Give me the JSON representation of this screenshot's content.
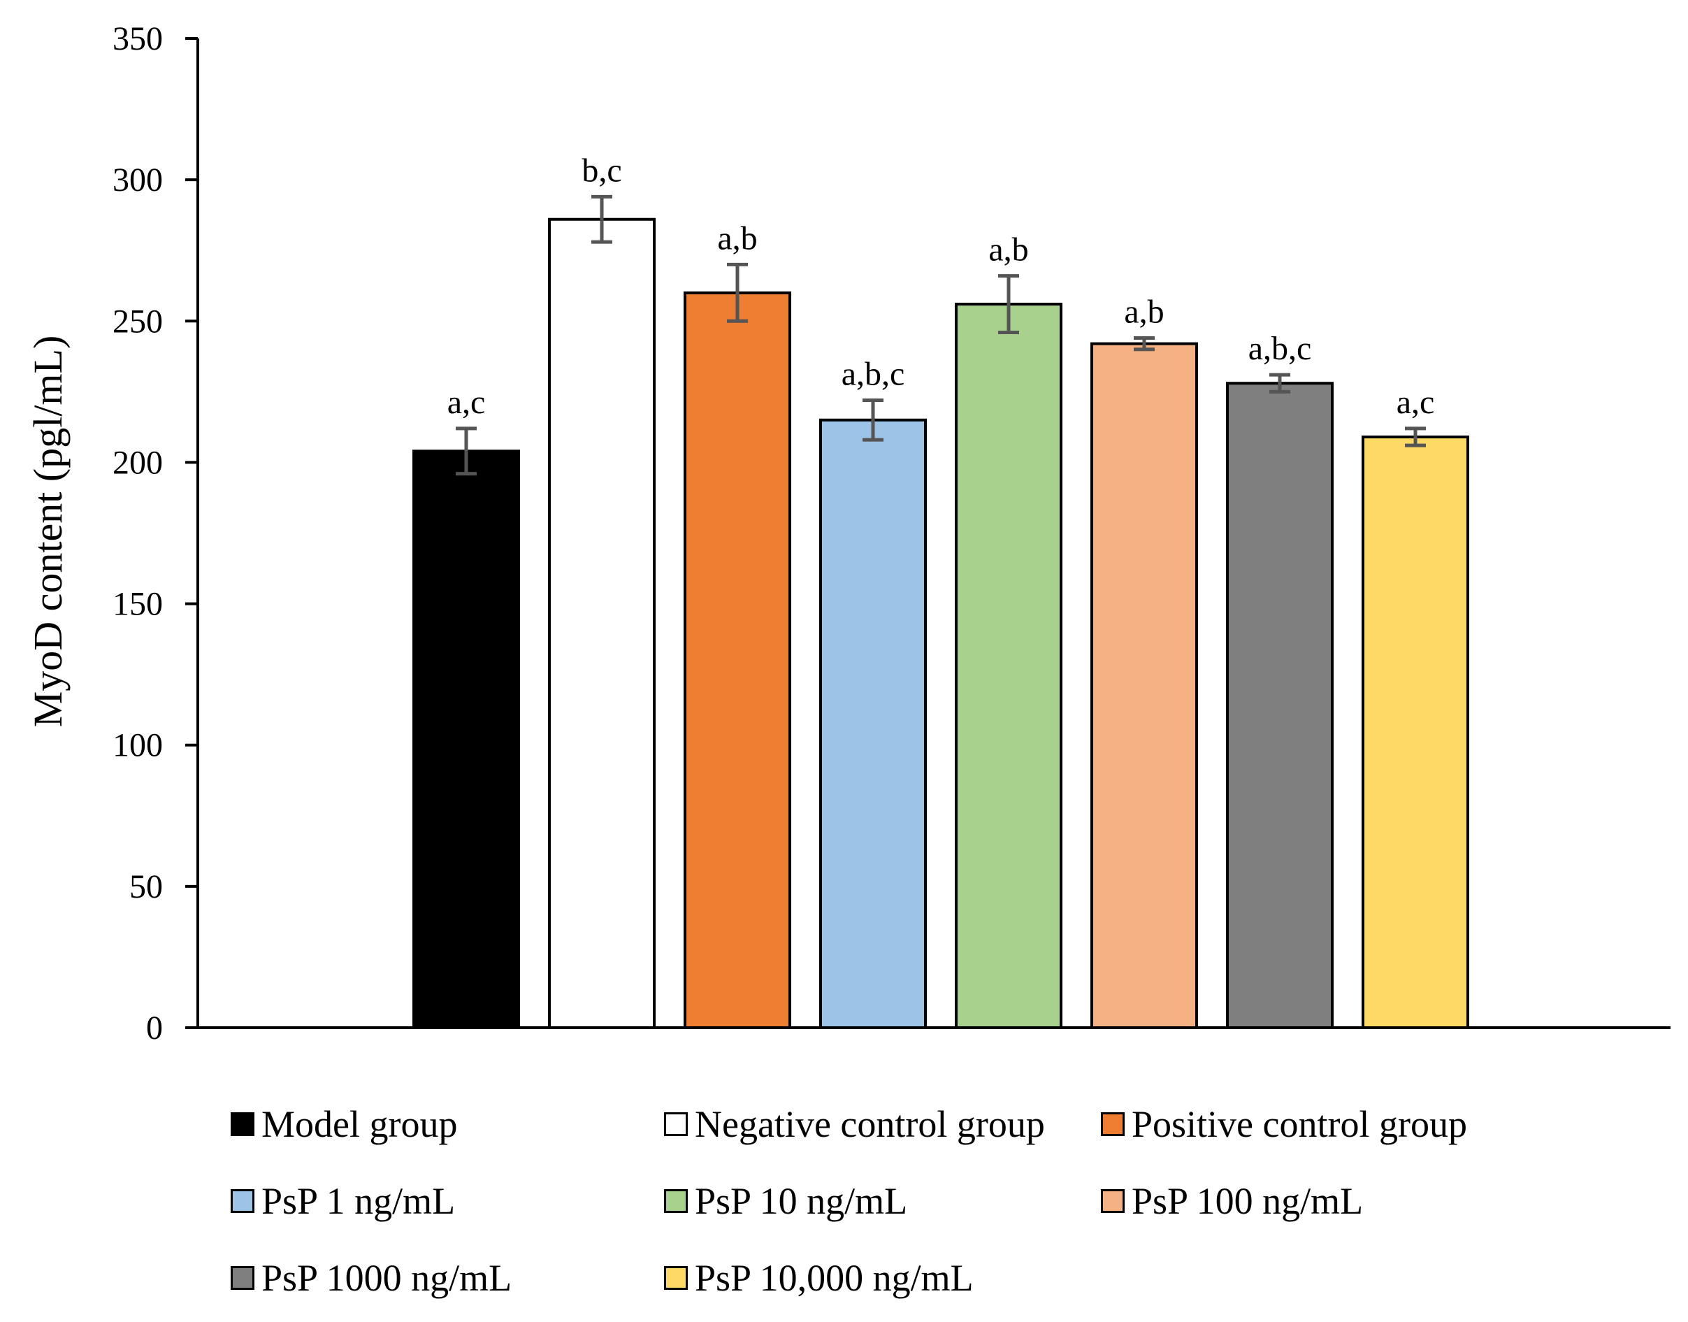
{
  "chart_data": {
    "type": "bar",
    "title": "",
    "xlabel": "",
    "ylabel": "MyoD content (pgl/mL)",
    "ylim": [
      0,
      350
    ],
    "yticks": [
      0,
      50,
      100,
      150,
      200,
      250,
      300,
      350
    ],
    "grid": false,
    "legend_position": "bottom",
    "categories": [
      "Model group",
      "Negative control group",
      "Positive control group",
      "PsP 1 ng/mL",
      "PsP 10 ng/mL",
      "PsP 100 ng/mL",
      "PsP 1000 ng/mL",
      "PsP 10,000 ng/mL"
    ],
    "values": [
      204,
      286,
      260,
      215,
      256,
      242,
      228,
      209
    ],
    "errors": [
      8,
      8,
      10,
      7,
      10,
      2,
      3,
      3
    ],
    "significance": [
      "a,c",
      "b,c",
      "a,b",
      "a,b,c",
      "a,b",
      "a,b",
      "a,b,c",
      "a,c"
    ],
    "colors": [
      "#000000",
      "#ffffff",
      "#ed7d31",
      "#9dc3e6",
      "#a9d18e",
      "#f4b183",
      "#7f7f7f",
      "#ffd966"
    ]
  }
}
